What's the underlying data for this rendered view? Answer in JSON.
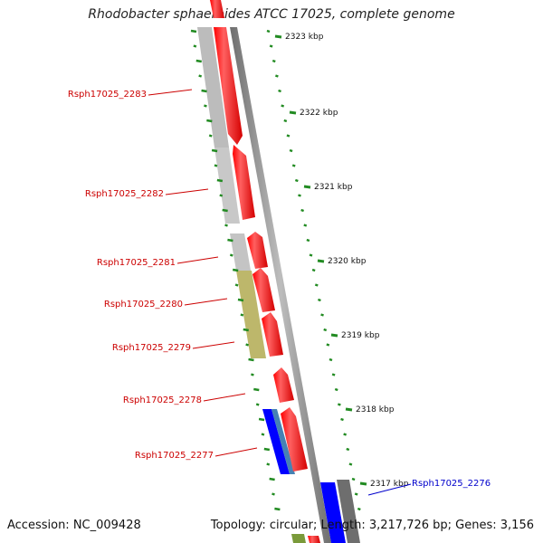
{
  "title": "Rhodobacter sphaeroides ATCC 17025, complete genome",
  "footer": {
    "accession": "Accession: NC_009428",
    "summary": "Topology: circular; Length: 3,217,726 bp; Genes: 3,156"
  },
  "scale": {
    "color": "#228b22",
    "ticks": [
      {
        "kbp": 2323,
        "label": "2323 kbp"
      },
      {
        "kbp": 2322,
        "label": "2322 kbp"
      },
      {
        "kbp": 2321,
        "label": "2321 kbp"
      },
      {
        "kbp": 2320,
        "label": "2320 kbp"
      },
      {
        "kbp": 2319,
        "label": "2319 kbp"
      },
      {
        "kbp": 2318,
        "label": "2318 kbp"
      },
      {
        "kbp": 2317,
        "label": "2317 kbp"
      }
    ]
  },
  "genes": [
    {
      "label": "Rsph17025_2283",
      "color": "#cc0000"
    },
    {
      "label": "Rsph17025_2282",
      "color": "#cc0000"
    },
    {
      "label": "Rsph17025_2281",
      "color": "#cc0000"
    },
    {
      "label": "Rsph17025_2280",
      "color": "#cc0000"
    },
    {
      "label": "Rsph17025_2279",
      "color": "#cc0000"
    },
    {
      "label": "Rsph17025_2278",
      "color": "#cc0000"
    },
    {
      "label": "Rsph17025_2277",
      "color": "#cc0000"
    },
    {
      "label": "Rsph17025_2276",
      "color": "#0000cc"
    }
  ],
  "colors": {
    "feature_forward": "#ff0000",
    "cog_grey": "#c0c0c0",
    "cog_olive": "#bdb76b",
    "cog_blue": "#0000ff",
    "cog_steelblue": "#4682b4",
    "backbone": "#8c8c8c"
  }
}
